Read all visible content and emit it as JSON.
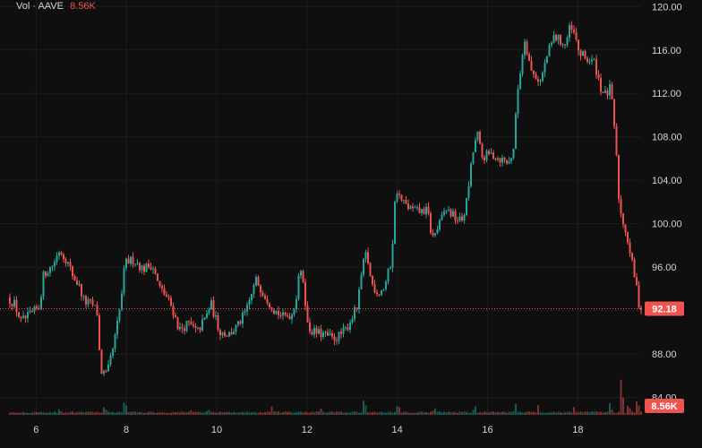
{
  "legend": {
    "label": "Vol · AAVE",
    "value": "8.56K"
  },
  "colors": {
    "background": "#0f0f0f",
    "grid": "#1c1c1c",
    "up": "#26a69a",
    "down": "#ef5350",
    "text": "#d1d4dc"
  },
  "chart_data": {
    "type": "candlestick",
    "symbol": "AAVE",
    "x_ticks": [
      "6",
      "8",
      "10",
      "12",
      "14",
      "16",
      "18"
    ],
    "x_range": [
      5.4,
      19.4
    ],
    "y_ticks": [
      "84.00",
      "88.00",
      "92.00",
      "96.00",
      "100.00",
      "104.00",
      "108.00",
      "112.00",
      "116.00",
      "120.00"
    ],
    "y_range": [
      82.4,
      120.6
    ],
    "grid": true,
    "last_price": 92.18,
    "last_price_label": "92.18",
    "volume_label": "8.56K",
    "price_path": [
      [
        5.4,
        93.2
      ],
      [
        5.55,
        92.6
      ],
      [
        5.7,
        91.0
      ],
      [
        5.9,
        91.6
      ],
      [
        6.1,
        92.3
      ],
      [
        6.2,
        95.4
      ],
      [
        6.4,
        96.2
      ],
      [
        6.55,
        97.6
      ],
      [
        6.7,
        96.7
      ],
      [
        6.85,
        95.2
      ],
      [
        7.0,
        94.1
      ],
      [
        7.1,
        92.8
      ],
      [
        7.3,
        92.5
      ],
      [
        7.4,
        91.6
      ],
      [
        7.45,
        86.5
      ],
      [
        7.6,
        86.0
      ],
      [
        7.75,
        88.8
      ],
      [
        7.9,
        92.5
      ],
      [
        8.0,
        96.4
      ],
      [
        8.2,
        96.7
      ],
      [
        8.4,
        95.8
      ],
      [
        8.6,
        96.3
      ],
      [
        8.75,
        94.2
      ],
      [
        8.9,
        93.4
      ],
      [
        9.05,
        92.2
      ],
      [
        9.2,
        90.2
      ],
      [
        9.4,
        90.8
      ],
      [
        9.6,
        90.0
      ],
      [
        9.8,
        91.5
      ],
      [
        9.9,
        92.7
      ],
      [
        10.0,
        91.3
      ],
      [
        10.1,
        90.1
      ],
      [
        10.3,
        89.8
      ],
      [
        10.5,
        90.6
      ],
      [
        10.7,
        92.1
      ],
      [
        10.9,
        94.8
      ],
      [
        11.1,
        93.4
      ],
      [
        11.3,
        92.1
      ],
      [
        11.5,
        91.4
      ],
      [
        11.7,
        91.7
      ],
      [
        11.8,
        93.4
      ],
      [
        11.85,
        95.6
      ],
      [
        11.95,
        94.8
      ],
      [
        12.05,
        90.4
      ],
      [
        12.2,
        90.0
      ],
      [
        12.4,
        89.8
      ],
      [
        12.6,
        89.4
      ],
      [
        12.75,
        89.7
      ],
      [
        12.9,
        90.3
      ],
      [
        13.0,
        91.2
      ],
      [
        13.15,
        92.4
      ],
      [
        13.25,
        95.8
      ],
      [
        13.35,
        97.4
      ],
      [
        13.45,
        94.6
      ],
      [
        13.6,
        93.6
      ],
      [
        13.75,
        94.2
      ],
      [
        13.9,
        96.6
      ],
      [
        14.0,
        103.4
      ],
      [
        14.1,
        102.2
      ],
      [
        14.3,
        101.4
      ],
      [
        14.5,
        101.1
      ],
      [
        14.7,
        101.2
      ],
      [
        14.8,
        98.6
      ],
      [
        14.95,
        99.8
      ],
      [
        15.1,
        101.4
      ],
      [
        15.3,
        100.6
      ],
      [
        15.45,
        100.2
      ],
      [
        15.55,
        101.6
      ],
      [
        15.7,
        106.4
      ],
      [
        15.8,
        108.4
      ],
      [
        15.9,
        106.1
      ],
      [
        16.1,
        106.4
      ],
      [
        16.3,
        106.0
      ],
      [
        16.5,
        105.6
      ],
      [
        16.6,
        106.8
      ],
      [
        16.7,
        112.4
      ],
      [
        16.85,
        117.1
      ],
      [
        17.0,
        114.0
      ],
      [
        17.2,
        113.1
      ],
      [
        17.35,
        115.5
      ],
      [
        17.5,
        117.2
      ],
      [
        17.6,
        117.0
      ],
      [
        17.75,
        116.4
      ],
      [
        17.85,
        118.0
      ],
      [
        17.95,
        117.4
      ],
      [
        18.05,
        115.8
      ],
      [
        18.2,
        115.2
      ],
      [
        18.4,
        114.8
      ],
      [
        18.55,
        112.3
      ],
      [
        18.65,
        111.8
      ],
      [
        18.75,
        112.5
      ],
      [
        18.85,
        108.4
      ],
      [
        18.95,
        101.4
      ],
      [
        19.1,
        99.2
      ],
      [
        19.3,
        94.8
      ],
      [
        19.4,
        92.18
      ]
    ],
    "volume_spikes": [
      [
        6.5,
        0.16
      ],
      [
        7.5,
        0.42
      ],
      [
        7.95,
        0.82
      ],
      [
        9.4,
        0.16
      ],
      [
        9.8,
        0.2
      ],
      [
        11.2,
        0.3
      ],
      [
        12.3,
        0.24
      ],
      [
        13.25,
        0.9
      ],
      [
        14.0,
        0.6
      ],
      [
        14.8,
        0.28
      ],
      [
        15.7,
        0.4
      ],
      [
        16.6,
        0.42
      ],
      [
        17.1,
        0.35
      ],
      [
        17.9,
        0.3
      ],
      [
        18.7,
        0.58
      ],
      [
        18.95,
        2.4
      ],
      [
        19.1,
        0.5
      ],
      [
        19.3,
        0.86
      ]
    ],
    "volume_max": 2.4
  }
}
